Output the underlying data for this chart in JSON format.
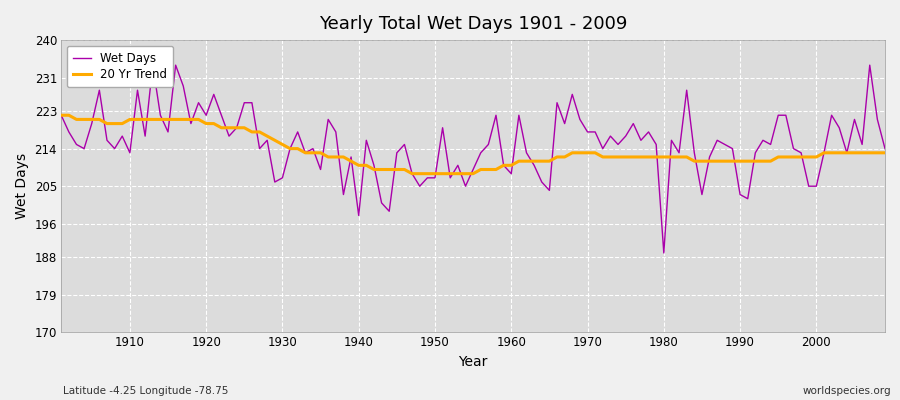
{
  "title": "Yearly Total Wet Days 1901 - 2009",
  "xlabel": "Year",
  "ylabel": "Wet Days",
  "footnote_left": "Latitude -4.25 Longitude -78.75",
  "footnote_right": "worldspecies.org",
  "ylim": [
    170,
    240
  ],
  "yticks": [
    170,
    179,
    188,
    196,
    205,
    214,
    223,
    231,
    240
  ],
  "xlim": [
    1901,
    2009
  ],
  "xticks": [
    1910,
    1920,
    1930,
    1940,
    1950,
    1960,
    1970,
    1980,
    1990,
    2000
  ],
  "bg_color": "#f0f0f0",
  "plot_bg_color": "#dcdcdc",
  "wet_days_color": "#aa00aa",
  "trend_color": "#ffaa00",
  "years": [
    1901,
    1902,
    1903,
    1904,
    1905,
    1906,
    1907,
    1908,
    1909,
    1910,
    1911,
    1912,
    1913,
    1914,
    1915,
    1916,
    1917,
    1918,
    1919,
    1920,
    1921,
    1922,
    1923,
    1924,
    1925,
    1926,
    1927,
    1928,
    1929,
    1930,
    1931,
    1932,
    1933,
    1934,
    1935,
    1936,
    1937,
    1938,
    1939,
    1940,
    1941,
    1942,
    1943,
    1944,
    1945,
    1946,
    1947,
    1948,
    1949,
    1950,
    1951,
    1952,
    1953,
    1954,
    1955,
    1956,
    1957,
    1958,
    1959,
    1960,
    1961,
    1962,
    1963,
    1964,
    1965,
    1966,
    1967,
    1968,
    1969,
    1970,
    1971,
    1972,
    1973,
    1974,
    1975,
    1976,
    1977,
    1978,
    1979,
    1980,
    1981,
    1982,
    1983,
    1984,
    1985,
    1986,
    1987,
    1988,
    1989,
    1990,
    1991,
    1992,
    1993,
    1994,
    1995,
    1996,
    1997,
    1998,
    1999,
    2000,
    2001,
    2002,
    2003,
    2004,
    2005,
    2006,
    2007,
    2008,
    2009
  ],
  "wet_days": [
    222,
    218,
    215,
    214,
    220,
    228,
    216,
    214,
    217,
    213,
    228,
    217,
    234,
    222,
    218,
    234,
    229,
    220,
    225,
    222,
    227,
    222,
    217,
    219,
    225,
    225,
    214,
    216,
    206,
    207,
    214,
    218,
    213,
    214,
    209,
    221,
    218,
    203,
    212,
    198,
    216,
    210,
    201,
    199,
    213,
    215,
    208,
    205,
    207,
    207,
    219,
    207,
    210,
    205,
    209,
    213,
    215,
    222,
    210,
    208,
    222,
    213,
    210,
    206,
    204,
    225,
    220,
    227,
    221,
    218,
    218,
    214,
    217,
    215,
    217,
    220,
    216,
    218,
    215,
    189,
    216,
    213,
    228,
    213,
    203,
    212,
    216,
    215,
    214,
    203,
    202,
    213,
    216,
    215,
    222,
    222,
    214,
    213,
    205,
    205,
    213,
    222,
    219,
    213,
    221,
    215,
    234,
    221,
    214
  ],
  "trend": [
    222,
    222,
    221,
    221,
    221,
    221,
    220,
    220,
    220,
    221,
    221,
    221,
    221,
    221,
    221,
    221,
    221,
    221,
    221,
    220,
    220,
    219,
    219,
    219,
    219,
    218,
    218,
    217,
    216,
    215,
    214,
    214,
    213,
    213,
    213,
    212,
    212,
    212,
    211,
    210,
    210,
    209,
    209,
    209,
    209,
    209,
    208,
    208,
    208,
    208,
    208,
    208,
    208,
    208,
    208,
    209,
    209,
    209,
    210,
    210,
    211,
    211,
    211,
    211,
    211,
    212,
    212,
    213,
    213,
    213,
    213,
    212,
    212,
    212,
    212,
    212,
    212,
    212,
    212,
    212,
    212,
    212,
    212,
    211,
    211,
    211,
    211,
    211,
    211,
    211,
    211,
    211,
    211,
    211,
    212,
    212,
    212,
    212,
    212,
    212,
    213,
    213,
    213,
    213,
    213,
    213,
    213,
    213,
    213
  ]
}
